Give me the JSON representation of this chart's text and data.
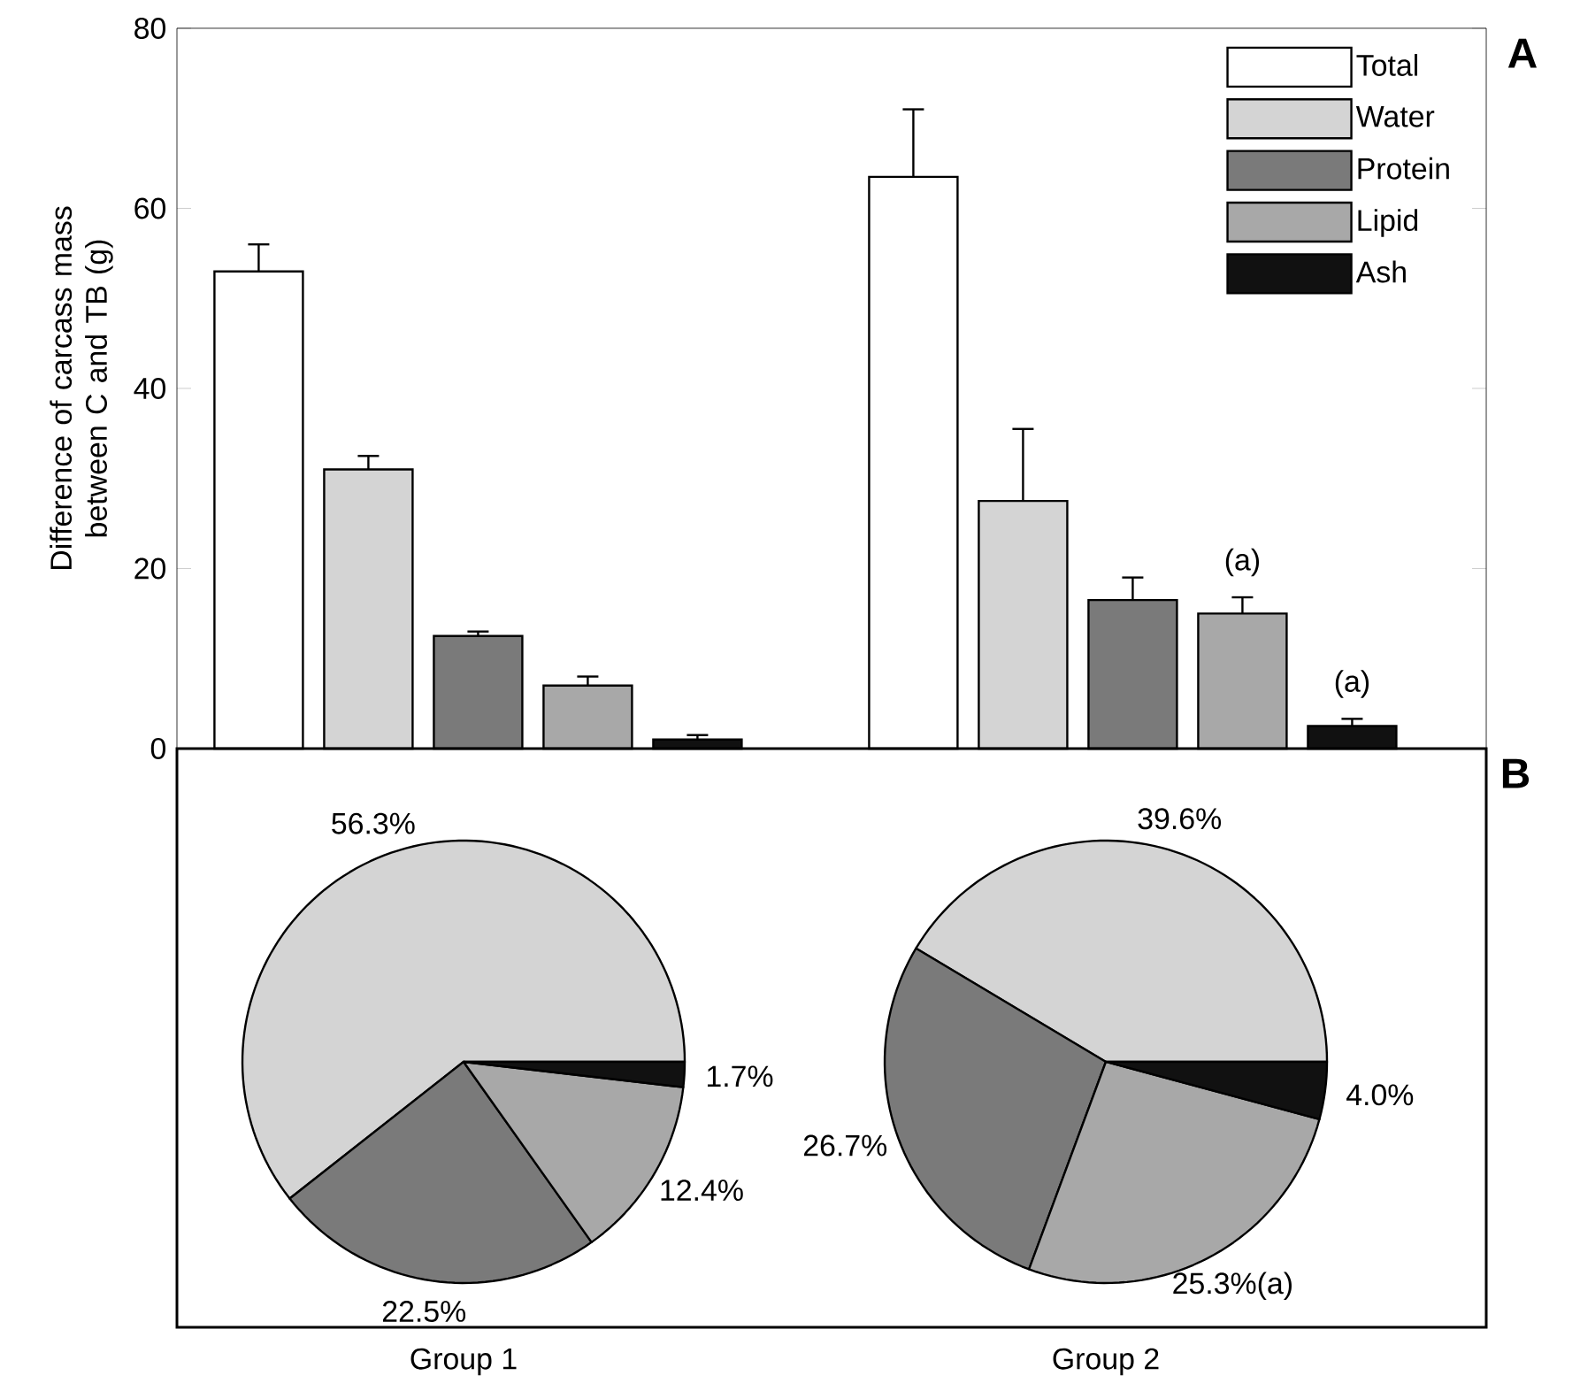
{
  "chart_data": [
    {
      "type": "bar",
      "ylabel": "Difference of carcass mass between C and TB (g)",
      "categories": [
        null,
        null
      ],
      "series": [
        {
          "name": "Total",
          "color": "#ffffff",
          "values": [
            53,
            63.5
          ],
          "errors": [
            3,
            7.5
          ]
        },
        {
          "name": "Water",
          "color": "#d4d4d4",
          "values": [
            31,
            27.5
          ],
          "errors": [
            1.5,
            8
          ]
        },
        {
          "name": "Protein",
          "color": "#7a7a7a",
          "values": [
            12.5,
            16.5
          ],
          "errors": [
            0.5,
            2.5
          ]
        },
        {
          "name": "Lipid",
          "color": "#a8a8a8",
          "values": [
            7,
            15
          ],
          "errors": [
            1,
            1.8
          ],
          "value_labels": [
            null,
            "(a)"
          ]
        },
        {
          "name": "Ash",
          "color": "#111111",
          "values": [
            1,
            2.5
          ],
          "errors": [
            0.5,
            0.8
          ],
          "value_labels": [
            null,
            "(a)"
          ]
        }
      ],
      "ylim": [
        0,
        80
      ],
      "yticks": [
        0,
        20,
        40,
        60,
        80
      ],
      "legend": "top right",
      "annotations": [
        "A"
      ]
    },
    {
      "type": "pie",
      "xlabel": "Group 1",
      "categories": [
        null,
        null,
        null,
        null
      ],
      "values": [
        56.3,
        22.5,
        12.4,
        1.7
      ],
      "colors": [
        "#d4d4d4",
        "#7a7a7a",
        "#a8a8a8",
        "#111111"
      ],
      "value_labels": [
        "56.3%",
        "22.5%",
        "12.4%",
        "1.7%"
      ],
      "annotations": [
        "B"
      ]
    },
    {
      "type": "pie",
      "xlabel": "Group 2",
      "categories": [
        null,
        null,
        null,
        null
      ],
      "values": [
        39.6,
        26.7,
        25.3,
        4.0
      ],
      "colors": [
        "#d4d4d4",
        "#7a7a7a",
        "#a8a8a8",
        "#111111"
      ],
      "value_labels": [
        "39.6%",
        "26.7%",
        "25.3%(a)",
        "4.0%"
      ]
    }
  ]
}
